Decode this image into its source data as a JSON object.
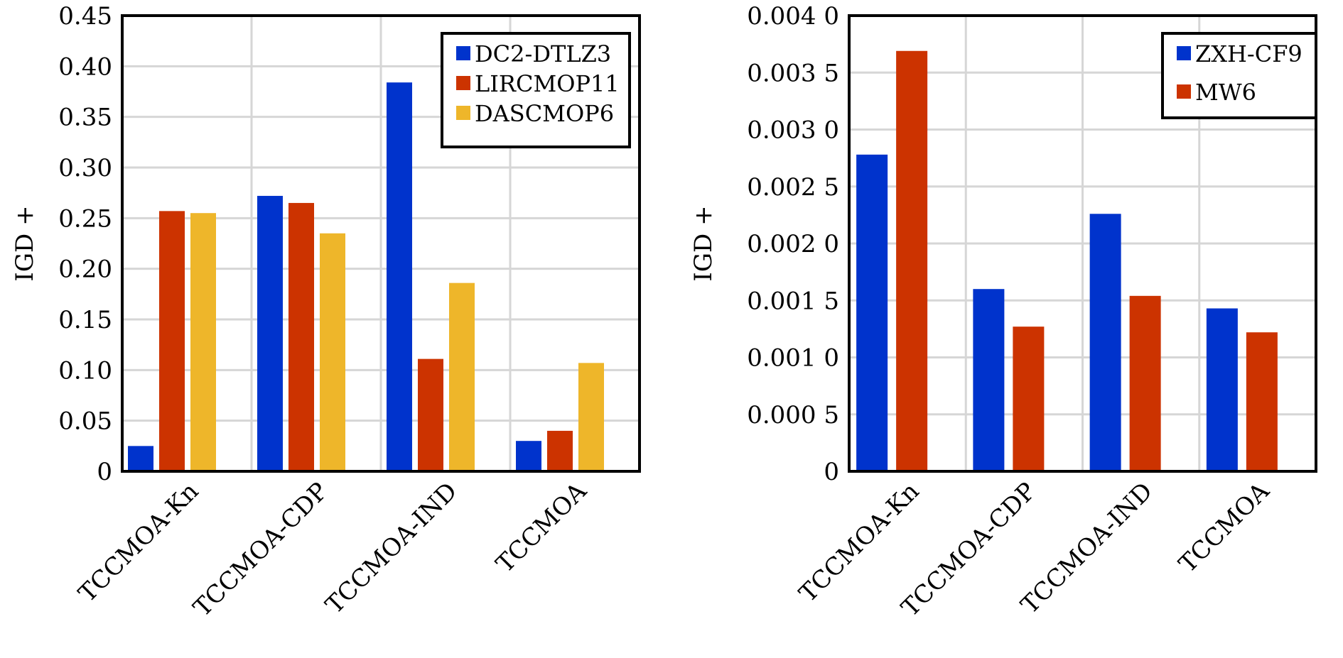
{
  "chart_data": [
    {
      "type": "bar",
      "categories": [
        "TCCMOA-Kn",
        "TCCMOA-CDP",
        "TCCMOA-IND",
        "TCCMOA"
      ],
      "series": [
        {
          "name": "DC2-DTLZ3",
          "color": "#0033cc",
          "values": [
            0.025,
            0.272,
            0.384,
            0.03
          ]
        },
        {
          "name": "LIRCMOP11",
          "color": "#cc3300",
          "values": [
            0.257,
            0.265,
            0.111,
            0.04
          ]
        },
        {
          "name": "DASCMOP6",
          "color": "#eeb62a",
          "values": [
            0.255,
            0.235,
            0.186,
            0.107
          ]
        }
      ],
      "xlabel": "",
      "ylabel": "IGD +",
      "ylim": [
        0,
        0.45
      ],
      "yticks": [
        0,
        0.05,
        0.1,
        0.15,
        0.2,
        0.25,
        0.3,
        0.35,
        0.4,
        0.45
      ],
      "ytick_labels": [
        "0",
        "0.05",
        "0.10",
        "0.15",
        "0.20",
        "0.25",
        "0.30",
        "0.35",
        "0.40",
        "0.45"
      ],
      "grid": true,
      "legend_position": "top-right"
    },
    {
      "type": "bar",
      "categories": [
        "TCCMOA-Kn",
        "TCCMOA-CDP",
        "TCCMOA-IND",
        "TCCMOA"
      ],
      "series": [
        {
          "name": "ZXH-CF9",
          "color": "#0033cc",
          "values": [
            0.00278,
            0.0016,
            0.00226,
            0.00143
          ]
        },
        {
          "name": "MW6",
          "color": "#cc3300",
          "values": [
            0.00369,
            0.00127,
            0.00154,
            0.00122
          ]
        }
      ],
      "xlabel": "",
      "ylabel": "IGD +",
      "ylim": [
        0,
        0.004
      ],
      "yticks": [
        0,
        0.0005,
        0.001,
        0.0015,
        0.002,
        0.0025,
        0.003,
        0.0035,
        0.004
      ],
      "ytick_labels": [
        "0",
        "0.000 5",
        "0.001 0",
        "0.001 5",
        "0.002 0",
        "0.002 5",
        "0.003 0",
        "0.003 5",
        "0.004 0"
      ],
      "grid": true,
      "legend_position": "top-right"
    }
  ]
}
